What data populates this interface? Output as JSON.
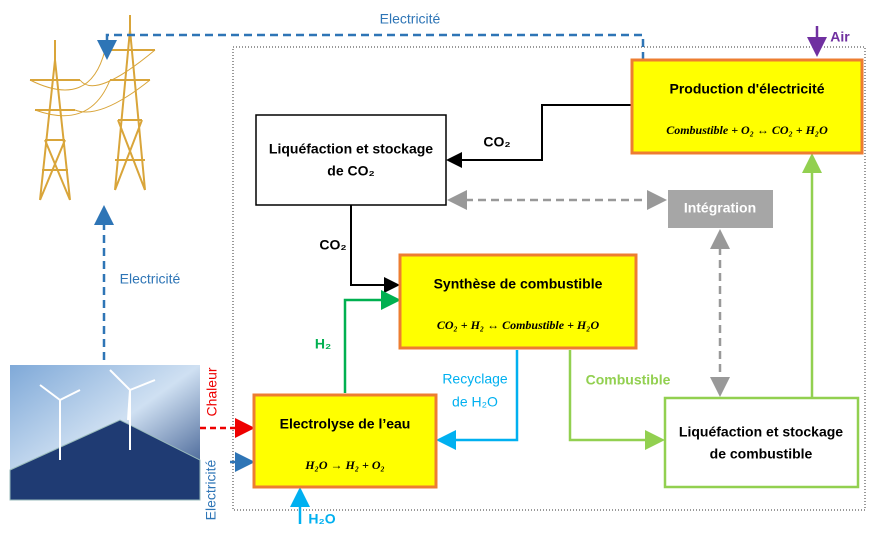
{
  "labels": {
    "electricite_top": "Electricité",
    "electricite_left": "Electricité",
    "electricite_bottom": "Electricité",
    "chaleur": "Chaleur",
    "air": "Air",
    "co2_top": "CO₂",
    "co2_left": "CO₂",
    "h2": "H₂",
    "recyclage": [
      "Recyclage",
      "de H₂O"
    ],
    "combustible": "Combustible",
    "h2o_in": "H₂O"
  },
  "nodes": [
    {
      "title": "Production d'électricité",
      "equation": "Combustible + O₂ ↔ CO₂ + H₂O"
    },
    {
      "title": [
        "Liquéfaction et stockage",
        "de CO₂"
      ]
    },
    {
      "title": "Intégration"
    },
    {
      "title": "Synthèse de combustible",
      "equation": "CO₂ + H₂ ↔ Combustible + H₂O"
    },
    {
      "title": "Electrolyse de l’eau",
      "equation": "H₂O → H₂ + O₂"
    },
    {
      "title": [
        "Liquéfaction et stockage",
        "de combustible"
      ]
    }
  ]
}
